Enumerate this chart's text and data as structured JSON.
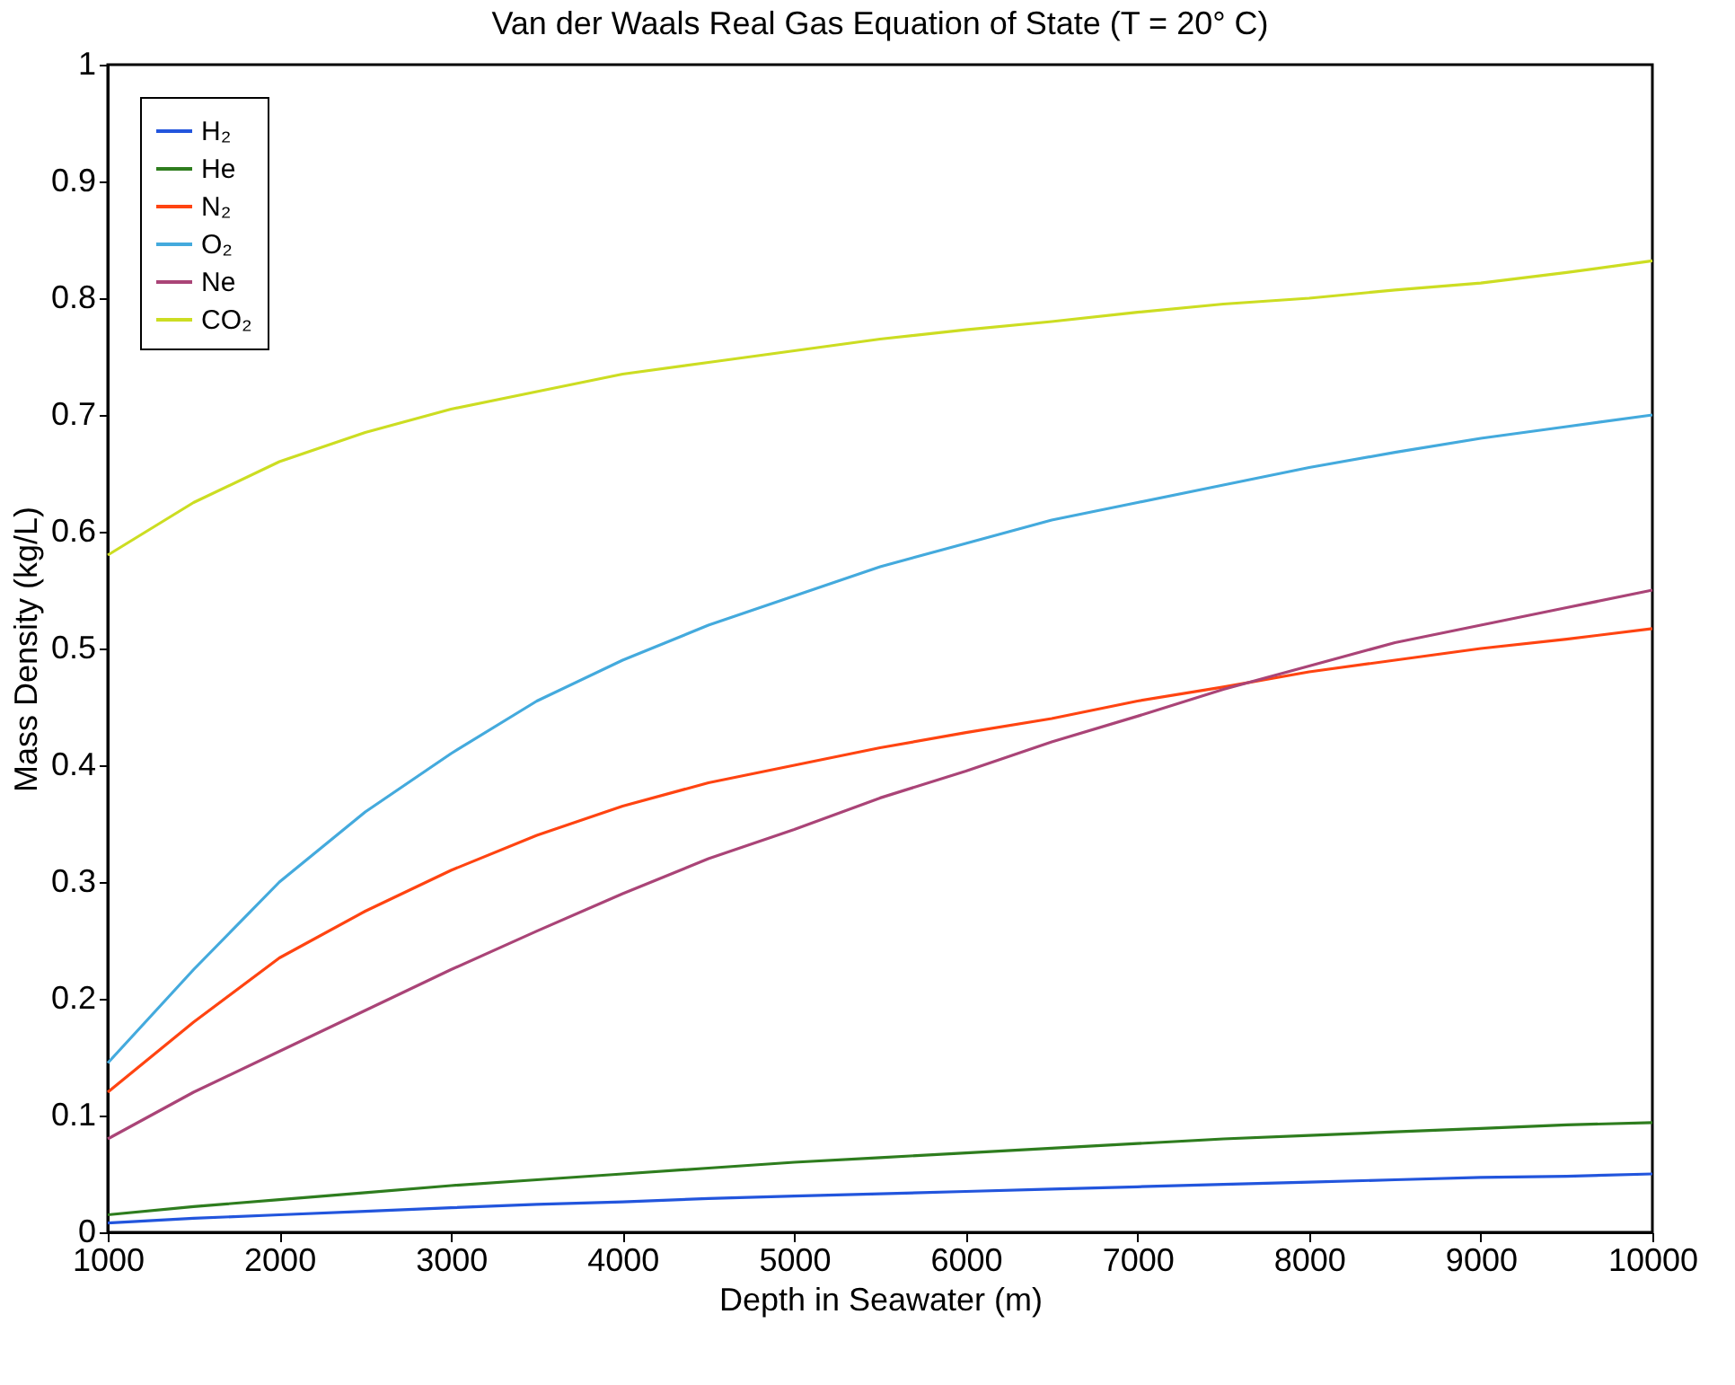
{
  "chart_data": {
    "type": "line",
    "title": "Van der Waals Real Gas Equation of State (T = 20° C)",
    "xlabel": "Depth in Seawater (m)",
    "ylabel": "Mass Density (kg/L)",
    "x": [
      1000,
      1500,
      2000,
      2500,
      3000,
      3500,
      4000,
      4500,
      5000,
      5500,
      6000,
      6500,
      7000,
      7500,
      8000,
      8500,
      9000,
      9500,
      10000
    ],
    "series": [
      {
        "name": "H₂",
        "color": "#2255dd",
        "values": [
          0.008,
          0.012,
          0.015,
          0.018,
          0.021,
          0.024,
          0.026,
          0.029,
          0.031,
          0.033,
          0.035,
          0.037,
          0.039,
          0.041,
          0.043,
          0.045,
          0.047,
          0.048,
          0.05
        ]
      },
      {
        "name": "He",
        "color": "#2e7d1e",
        "values": [
          0.015,
          0.022,
          0.028,
          0.034,
          0.04,
          0.045,
          0.05,
          0.055,
          0.06,
          0.064,
          0.068,
          0.072,
          0.076,
          0.08,
          0.083,
          0.086,
          0.089,
          0.092,
          0.094
        ]
      },
      {
        "name": "N₂",
        "color": "#ff4411",
        "values": [
          0.12,
          0.18,
          0.235,
          0.275,
          0.31,
          0.34,
          0.365,
          0.385,
          0.4,
          0.415,
          0.428,
          0.44,
          0.455,
          0.467,
          0.48,
          0.49,
          0.5,
          0.508,
          0.517
        ]
      },
      {
        "name": "O₂",
        "color": "#44aadd",
        "values": [
          0.145,
          0.225,
          0.3,
          0.36,
          0.41,
          0.455,
          0.49,
          0.52,
          0.545,
          0.57,
          0.59,
          0.61,
          0.625,
          0.64,
          0.655,
          0.668,
          0.68,
          0.69,
          0.7
        ]
      },
      {
        "name": "Ne",
        "color": "#aa4477",
        "values": [
          0.08,
          0.12,
          0.155,
          0.19,
          0.225,
          0.258,
          0.29,
          0.32,
          0.345,
          0.372,
          0.395,
          0.42,
          0.442,
          0.465,
          0.485,
          0.505,
          0.52,
          0.535,
          0.55
        ]
      },
      {
        "name": "CO₂",
        "color": "#ccdd22",
        "values": [
          0.58,
          0.625,
          0.66,
          0.685,
          0.705,
          0.72,
          0.735,
          0.745,
          0.755,
          0.765,
          0.773,
          0.78,
          0.788,
          0.795,
          0.8,
          0.807,
          0.813,
          0.822,
          0.832
        ]
      }
    ],
    "xlim": [
      1000,
      10000
    ],
    "xticks": [
      1000,
      2000,
      3000,
      4000,
      5000,
      6000,
      7000,
      8000,
      9000,
      10000
    ],
    "ylim": [
      0,
      1
    ],
    "yticks": [
      0,
      0.1,
      0.2,
      0.3,
      0.4,
      0.5,
      0.6,
      0.7,
      0.8,
      0.9,
      1
    ],
    "grid": false,
    "legend": "top left",
    "line_style": "solid",
    "marker": "none"
  }
}
